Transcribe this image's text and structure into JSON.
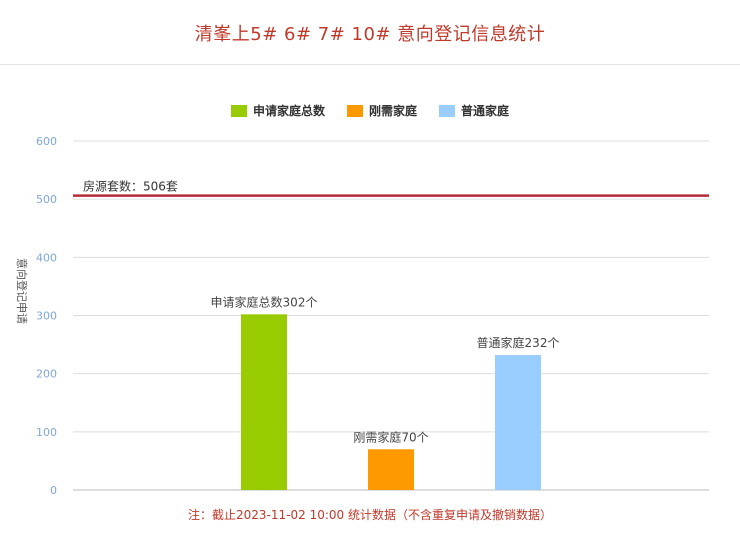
{
  "header": {
    "title": "清峯上5# 6# 7# 10# 意向登记信息统计"
  },
  "note": "注：截止2023-11-02 10:00 统计数据（不含重复申请及撤销数据）",
  "colors": {
    "title": "#c0392b",
    "reference_line": "#b52b3a"
  },
  "chart_data": {
    "type": "bar",
    "title": "清峯上5# 6# 7# 10# 意向登记信息统计",
    "ylabel": "意向登记申请",
    "ylim": [
      0,
      600
    ],
    "yticks": [
      0,
      100,
      200,
      300,
      400,
      500,
      600
    ],
    "grid": true,
    "legend_position": "top-center",
    "series": [
      {
        "name": "申请家庭总数",
        "value": 302,
        "label": "申请家庭总数302个",
        "color": "#99cc00"
      },
      {
        "name": "刚需家庭",
        "value": 70,
        "label": "刚需家庭70个",
        "color": "#ff9900"
      },
      {
        "name": "普通家庭",
        "value": 232,
        "label": "普通家庭232个",
        "color": "#99ccff"
      }
    ],
    "reference_line": {
      "value": 506,
      "label": "房源套数：506套"
    }
  }
}
